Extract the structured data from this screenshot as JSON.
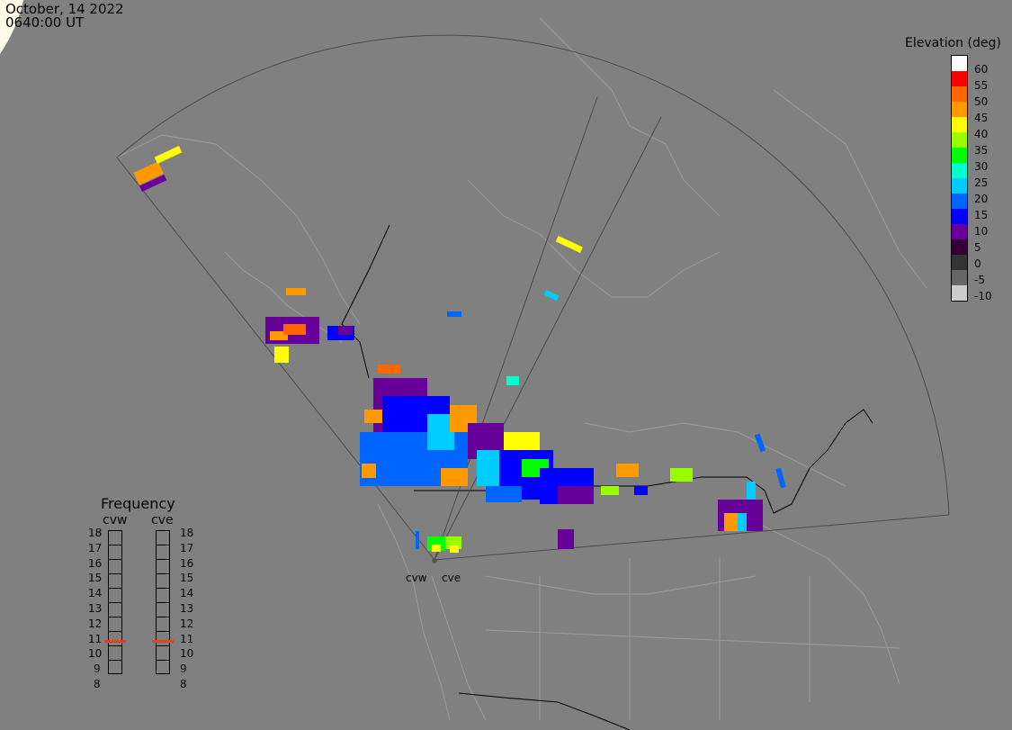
{
  "header": {
    "date": "October, 14 2022",
    "time": "0640:00 UT"
  },
  "colorbar": {
    "title": "Elevation (deg)",
    "levels": [
      {
        "label": "60",
        "color": "#ffffff"
      },
      {
        "label": "55",
        "color": "#ff0000"
      },
      {
        "label": "50",
        "color": "#ff6600"
      },
      {
        "label": "45",
        "color": "#ff9900"
      },
      {
        "label": "40",
        "color": "#ffff00"
      },
      {
        "label": "35",
        "color": "#99ff00"
      },
      {
        "label": "30",
        "color": "#00ff00"
      },
      {
        "label": "25",
        "color": "#00ffcc"
      },
      {
        "label": "20",
        "color": "#00ccff"
      },
      {
        "label": "15",
        "color": "#0066ff"
      },
      {
        "label": "10",
        "color": "#0000ff"
      },
      {
        "label": "5",
        "color": "#660099"
      },
      {
        "label": "0",
        "color": "#330033"
      },
      {
        "label": "-5",
        "color": "#333333"
      },
      {
        "label": "-10",
        "color": "#666666"
      },
      {
        "label": "",
        "color": "#cccccc"
      }
    ]
  },
  "frequency": {
    "title": "Frequency",
    "radars": [
      "cvw",
      "cve"
    ],
    "scale": [
      "18",
      "17",
      "16",
      "15",
      "14",
      "13",
      "12",
      "11",
      "10",
      "9",
      "8"
    ],
    "active_mhz": {
      "cvw": 10.7,
      "cve": 10.7
    }
  },
  "sites": {
    "west": "cvw",
    "east": "cve"
  },
  "colors": {
    "background": "#808080",
    "coast": "#9a9a9a",
    "fov": "#4a4a4a",
    "marker": "#e8401c"
  }
}
